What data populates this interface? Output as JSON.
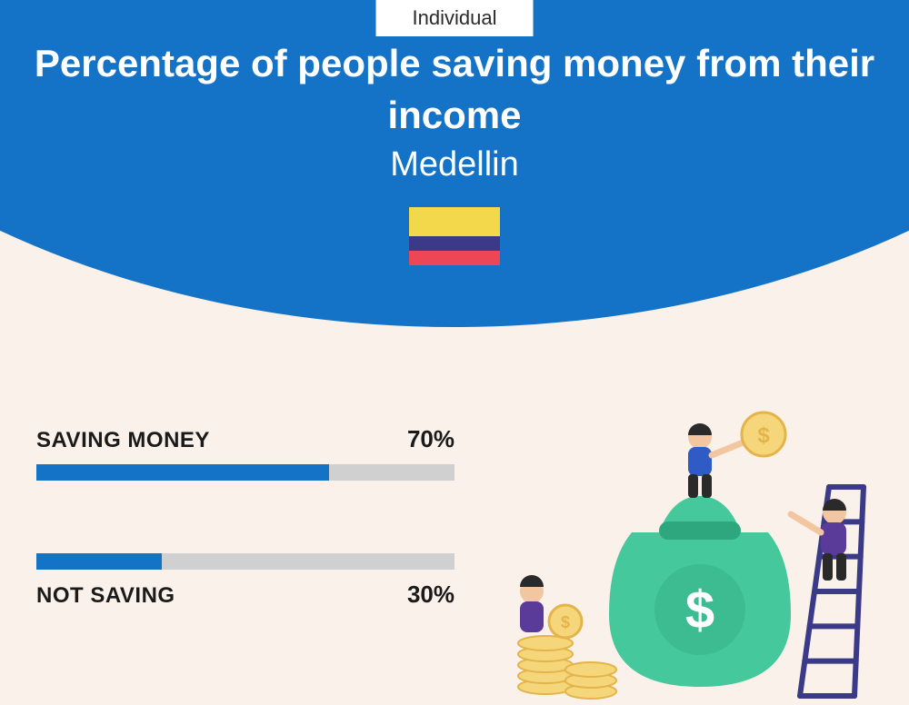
{
  "header": {
    "tab_label": "Individual",
    "title": "Percentage of people saving money from their income",
    "subtitle": "Medellin",
    "background_color": "#1473c6",
    "text_color": "#ffffff",
    "title_fontsize": 42,
    "subtitle_fontsize": 38
  },
  "flag": {
    "stripes": [
      {
        "color": "#f3d84c",
        "height_pct": 50
      },
      {
        "color": "#3b3a88",
        "height_pct": 25
      },
      {
        "color": "#ed4657",
        "height_pct": 25
      }
    ]
  },
  "bars": {
    "track_color": "#d0d0d0",
    "fill_color": "#1473c6",
    "label_fontsize": 24,
    "value_fontsize": 26,
    "items": [
      {
        "label": "SAVING MONEY",
        "value_pct": 70,
        "value_label": "70%",
        "label_position": "above"
      },
      {
        "label": "NOT SAVING",
        "value_pct": 30,
        "value_label": "30%",
        "label_position": "below"
      }
    ]
  },
  "page": {
    "background_color": "#faf1ea"
  },
  "illustration": {
    "bag_color": "#45c89b",
    "bag_dark": "#2fa77e",
    "coin_light": "#f6d67a",
    "coin_dark": "#e3b44a",
    "ladder_color": "#3b3a88",
    "person_blue": "#2f5bc6",
    "person_purple": "#5a3b9a",
    "skin_color": "#f2c6a0",
    "hair_color": "#2a2a2a"
  }
}
